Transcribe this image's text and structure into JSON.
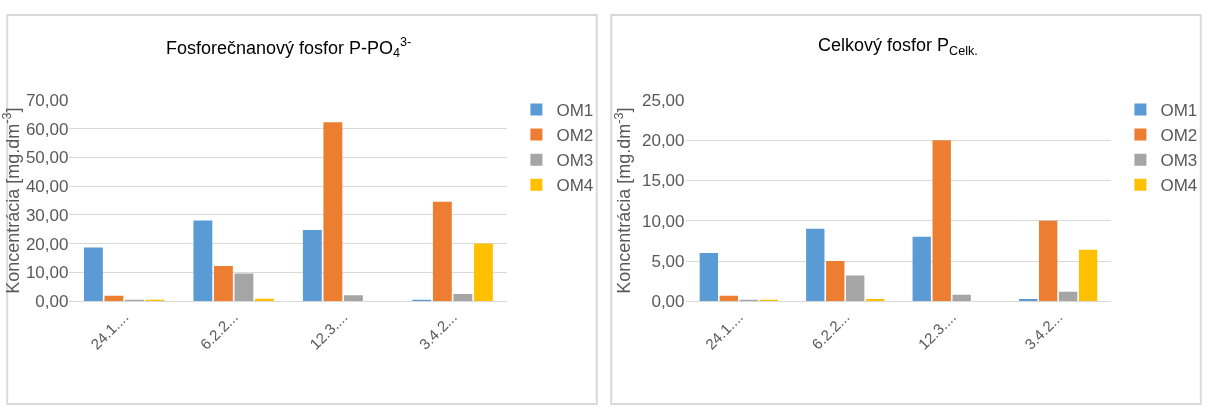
{
  "chart_data": [
    {
      "type": "bar",
      "title": "Fosforečnanový fosfor P-PO$_{4}$$^{3-}$",
      "ylabel": "Koncentrácia [mg.dm$^{-3}$]",
      "categories": [
        "24.1....",
        "6.2.2...",
        "12.3....",
        "3.4.2..."
      ],
      "series": [
        {
          "name": "OM1",
          "color": "#5b9bd5",
          "values": [
            18.7,
            28.1,
            24.8,
            0.4
          ]
        },
        {
          "name": "OM2",
          "color": "#ed7d31",
          "values": [
            1.9,
            12.3,
            62.2,
            34.6
          ]
        },
        {
          "name": "OM3",
          "color": "#a5a5a5",
          "values": [
            0.3,
            9.7,
            2.1,
            2.5
          ]
        },
        {
          "name": "OM4",
          "color": "#ffc000",
          "values": [
            0.5,
            0.9,
            0,
            20.1
          ]
        }
      ],
      "ylim": [
        0,
        70
      ],
      "yticks": [
        {
          "value": 0,
          "label": "0,00"
        },
        {
          "value": 10,
          "label": "10,00"
        },
        {
          "value": 20,
          "label": "20,00"
        },
        {
          "value": 30,
          "label": "30,00"
        },
        {
          "value": 40,
          "label": "40,00"
        },
        {
          "value": 50,
          "label": "50,00"
        },
        {
          "value": 60,
          "label": "60,00"
        },
        {
          "value": 70,
          "label": "70,00"
        }
      ],
      "grid": "y",
      "legend": "right"
    },
    {
      "type": "bar",
      "title": "Celkový fosfor P$_{Celk.}$",
      "ylabel": "Koncentrácia [mg.dm$^{-3}$]",
      "categories": [
        "24.1....",
        "6.2.2...",
        "12.3....",
        "3.4.2..."
      ],
      "series": [
        {
          "name": "OM1",
          "color": "#5b9bd5",
          "values": [
            6.0,
            9.0,
            8.0,
            0.3
          ]
        },
        {
          "name": "OM2",
          "color": "#ed7d31",
          "values": [
            0.7,
            5.0,
            20.0,
            10.0
          ]
        },
        {
          "name": "OM3",
          "color": "#a5a5a5",
          "values": [
            0.1,
            3.2,
            0.8,
            1.2
          ]
        },
        {
          "name": "OM4",
          "color": "#ffc000",
          "values": [
            0.2,
            0.3,
            0,
            6.4
          ]
        }
      ],
      "ylim": [
        0,
        25
      ],
      "yticks": [
        {
          "value": 0,
          "label": "0,00"
        },
        {
          "value": 5,
          "label": "5,00"
        },
        {
          "value": 10,
          "label": "10,00"
        },
        {
          "value": 15,
          "label": "15,00"
        },
        {
          "value": 20,
          "label": "20,00"
        },
        {
          "value": 25,
          "label": "25,00"
        }
      ],
      "grid": "y",
      "legend": "right"
    }
  ]
}
